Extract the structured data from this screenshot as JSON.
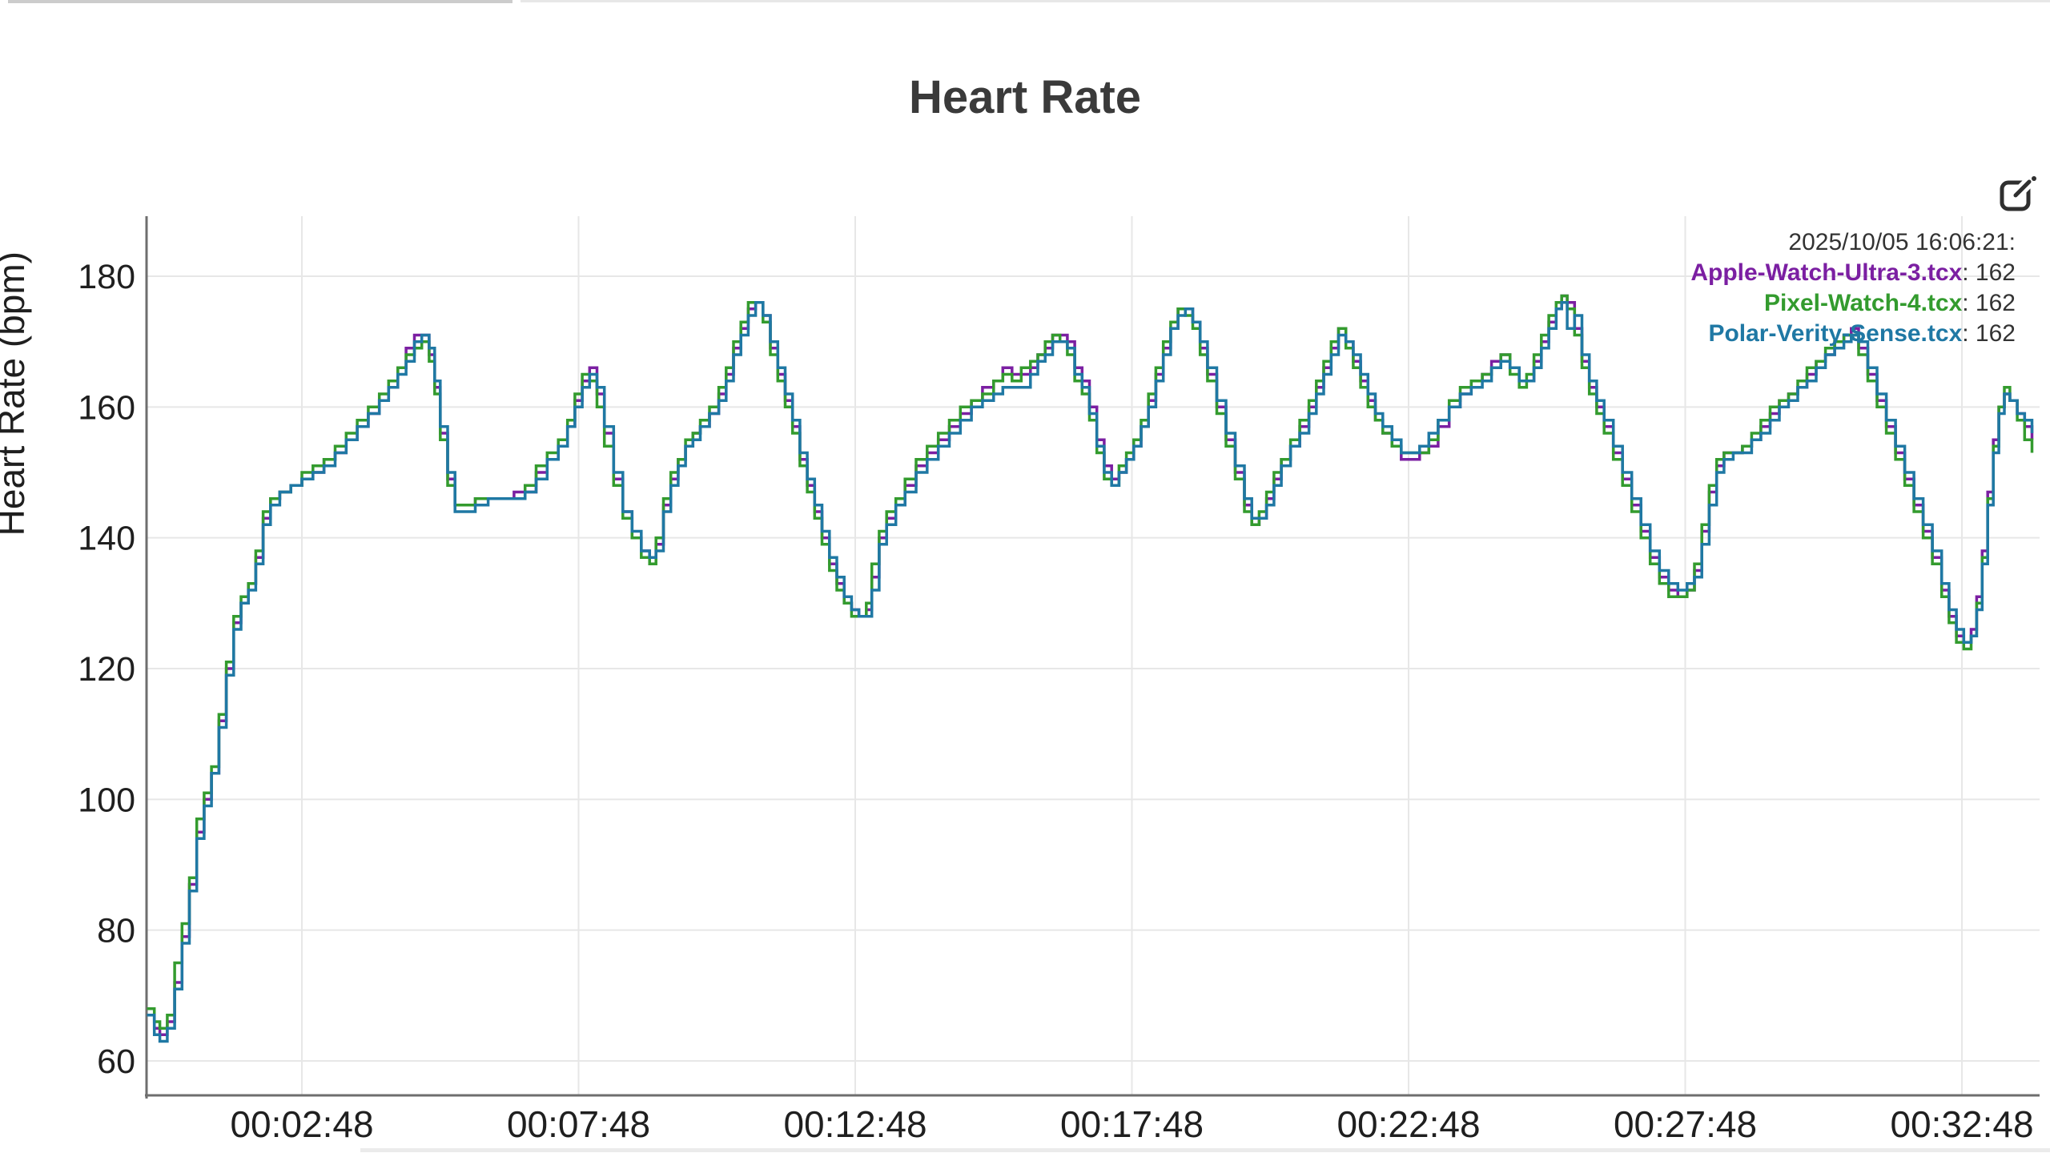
{
  "page": {
    "title": "Heart Rate"
  },
  "artifacts": {
    "top_edge_color_dark": "#cccccc",
    "top_edge_color_light": "#e7e7e7",
    "bottom_edge_color": "#ebebeb"
  },
  "chart_data": {
    "type": "line",
    "title": "Heart Rate",
    "xlabel": "",
    "ylabel": "Heart Rate (bpm)",
    "grid": true,
    "grid_color": "#e7e7e7",
    "axis_color": "#6e6e6e",
    "tick_text_color": "#1f1f1f",
    "ylim": [
      52,
      189
    ],
    "xlim_seconds": [
      0,
      2049
    ],
    "y_ticks": [
      60,
      80,
      100,
      120,
      140,
      160,
      180
    ],
    "x_ticks": [
      {
        "label": "00:02:48",
        "t": 168
      },
      {
        "label": "00:07:48",
        "t": 468
      },
      {
        "label": "00:12:48",
        "t": 768
      },
      {
        "label": "00:17:48",
        "t": 1068
      },
      {
        "label": "00:22:48",
        "t": 1368
      },
      {
        "label": "00:27:48",
        "t": 1668
      },
      {
        "label": "00:32:48",
        "t": 1968
      }
    ],
    "legend_position": "top-right-inside",
    "hover": {
      "timestamp": "2025/10/05 16:06:21:",
      "values": [
        {
          "name": "Apple-Watch-Ultra-3.tcx",
          "suffix": ": 162",
          "value": 162,
          "color": "#7b1fa2"
        },
        {
          "name": "Pixel-Watch-4.tcx",
          "suffix": ": 162",
          "value": 162,
          "color": "#339b2e"
        },
        {
          "name": "Polar-Verity-Sense.tcx",
          "suffix": ": 162",
          "value": 162,
          "color": "#1f78a4"
        }
      ]
    },
    "t": [
      0,
      8,
      14,
      22,
      30,
      38,
      46,
      54,
      62,
      70,
      78,
      86,
      94,
      102,
      110,
      118,
      126,
      134,
      144,
      156,
      168,
      180,
      192,
      204,
      216,
      228,
      240,
      252,
      262,
      272,
      281,
      290,
      298,
      306,
      312,
      318,
      326,
      334,
      344,
      356,
      370,
      384,
      398,
      410,
      422,
      434,
      446,
      456,
      464,
      472,
      480,
      488,
      496,
      506,
      516,
      526,
      536,
      545,
      552,
      560,
      568,
      576,
      584,
      592,
      600,
      610,
      620,
      628,
      636,
      644,
      652,
      660,
      668,
      676,
      684,
      692,
      700,
      708,
      716,
      724,
      732,
      740,
      748,
      756,
      764,
      772,
      780,
      786,
      794,
      802,
      812,
      822,
      834,
      846,
      858,
      870,
      882,
      894,
      906,
      918,
      928,
      938,
      948,
      958,
      966,
      974,
      982,
      990,
      998,
      1006,
      1014,
      1022,
      1030,
      1038,
      1046,
      1054,
      1062,
      1070,
      1078,
      1086,
      1094,
      1102,
      1110,
      1118,
      1126,
      1134,
      1142,
      1150,
      1160,
      1170,
      1180,
      1190,
      1198,
      1206,
      1214,
      1222,
      1230,
      1240,
      1250,
      1260,
      1268,
      1276,
      1284,
      1292,
      1300,
      1308,
      1316,
      1324,
      1332,
      1340,
      1350,
      1360,
      1370,
      1380,
      1390,
      1400,
      1412,
      1424,
      1436,
      1448,
      1458,
      1468,
      1478,
      1488,
      1496,
      1504,
      1512,
      1520,
      1528,
      1534,
      1540,
      1548,
      1556,
      1564,
      1572,
      1580,
      1590,
      1600,
      1610,
      1620,
      1630,
      1640,
      1650,
      1660,
      1670,
      1678,
      1686,
      1694,
      1702,
      1710,
      1720,
      1730,
      1740,
      1750,
      1760,
      1770,
      1780,
      1790,
      1800,
      1810,
      1820,
      1830,
      1840,
      1848,
      1856,
      1866,
      1876,
      1886,
      1896,
      1906,
      1916,
      1926,
      1936,
      1946,
      1954,
      1962,
      1970,
      1978,
      1984,
      1990,
      1996,
      2002,
      2008,
      2014,
      2020,
      2028,
      2036,
      2044
    ],
    "series": [
      {
        "name": "Apple-Watch-Ultra-3.tcx",
        "color": "#7b1fa2",
        "values": [
          67,
          65,
          64,
          66,
          72,
          79,
          87,
          95,
          100,
          104,
          112,
          120,
          127,
          130,
          133,
          137,
          143,
          146,
          147,
          148,
          149,
          150,
          152,
          153,
          155,
          157,
          159,
          161,
          163,
          166,
          169,
          171,
          171,
          168,
          163,
          156,
          149,
          145,
          145,
          146,
          146,
          146,
          147,
          147,
          150,
          152,
          154,
          157,
          161,
          164,
          166,
          162,
          156,
          149,
          144,
          140,
          138,
          137,
          139,
          145,
          149,
          152,
          154,
          156,
          157,
          159,
          162,
          165,
          169,
          172,
          175,
          176,
          174,
          169,
          165,
          161,
          157,
          152,
          148,
          144,
          140,
          136,
          133,
          130,
          129,
          128,
          129,
          134,
          140,
          143,
          145,
          148,
          151,
          153,
          155,
          157,
          159,
          161,
          163,
          164,
          166,
          165,
          165,
          166,
          168,
          169,
          171,
          171,
          170,
          166,
          164,
          160,
          155,
          151,
          149,
          150,
          152,
          154,
          157,
          161,
          165,
          169,
          172,
          175,
          175,
          173,
          169,
          165,
          160,
          155,
          150,
          145,
          142,
          143,
          146,
          149,
          152,
          154,
          157,
          160,
          163,
          166,
          169,
          172,
          170,
          167,
          164,
          161,
          158,
          156,
          154,
          152,
          152,
          153,
          154,
          157,
          160,
          162,
          164,
          165,
          167,
          168,
          166,
          164,
          164,
          167,
          170,
          173,
          175,
          177,
          176,
          172,
          167,
          163,
          160,
          157,
          153,
          149,
          145,
          141,
          137,
          134,
          132,
          131,
          132,
          135,
          141,
          147,
          151,
          153,
          153,
          154,
          155,
          157,
          159,
          161,
          162,
          163,
          165,
          167,
          168,
          170,
          171,
          172,
          169,
          165,
          161,
          157,
          153,
          149,
          145,
          141,
          137,
          132,
          128,
          125,
          124,
          126,
          131,
          138,
          147,
          155,
          160,
          162,
          161,
          159,
          157,
          155
        ]
      },
      {
        "name": "Pixel-Watch-4.tcx",
        "color": "#339b2e",
        "values": [
          68,
          66,
          65,
          67,
          75,
          81,
          88,
          97,
          101,
          105,
          113,
          121,
          128,
          131,
          133,
          138,
          144,
          146,
          147,
          148,
          150,
          151,
          152,
          154,
          156,
          158,
          160,
          162,
          164,
          166,
          168,
          169,
          170,
          167,
          162,
          155,
          148,
          145,
          145,
          146,
          146,
          146,
          146,
          148,
          151,
          153,
          155,
          158,
          162,
          165,
          164,
          160,
          154,
          148,
          143,
          140,
          137,
          136,
          140,
          146,
          150,
          152,
          155,
          156,
          158,
          160,
          163,
          166,
          170,
          173,
          176,
          176,
          173,
          168,
          164,
          160,
          156,
          151,
          147,
          143,
          139,
          135,
          132,
          130,
          128,
          128,
          130,
          136,
          141,
          144,
          146,
          149,
          152,
          154,
          156,
          158,
          160,
          161,
          162,
          164,
          165,
          164,
          166,
          167,
          168,
          170,
          171,
          170,
          168,
          164,
          162,
          158,
          153,
          149,
          148,
          151,
          153,
          155,
          158,
          162,
          166,
          170,
          173,
          175,
          174,
          172,
          168,
          164,
          159,
          154,
          149,
          144,
          142,
          144,
          147,
          150,
          152,
          155,
          158,
          161,
          164,
          167,
          170,
          172,
          169,
          166,
          163,
          160,
          158,
          156,
          154,
          153,
          153,
          153,
          155,
          158,
          161,
          163,
          164,
          165,
          166,
          168,
          165,
          163,
          165,
          168,
          171,
          174,
          176,
          177,
          175,
          171,
          166,
          162,
          159,
          156,
          152,
          148,
          144,
          140,
          136,
          133,
          131,
          131,
          132,
          136,
          142,
          148,
          152,
          153,
          153,
          154,
          156,
          158,
          160,
          161,
          162,
          164,
          166,
          167,
          169,
          170,
          171,
          171,
          168,
          164,
          160,
          156,
          152,
          148,
          144,
          140,
          136,
          131,
          127,
          124,
          123,
          125,
          130,
          137,
          146,
          154,
          160,
          163,
          161,
          158,
          155,
          153
        ]
      },
      {
        "name": "Polar-Verity-Sense.tcx",
        "color": "#1f78a4",
        "values": [
          67,
          64,
          63,
          65,
          71,
          78,
          86,
          94,
          99,
          104,
          111,
          119,
          126,
          130,
          132,
          136,
          142,
          145,
          147,
          148,
          149,
          150,
          151,
          153,
          155,
          157,
          159,
          161,
          163,
          165,
          167,
          170,
          171,
          169,
          164,
          157,
          150,
          144,
          144,
          145,
          146,
          146,
          146,
          147,
          149,
          152,
          154,
          157,
          160,
          163,
          165,
          163,
          157,
          150,
          144,
          141,
          138,
          137,
          138,
          144,
          148,
          151,
          154,
          155,
          157,
          159,
          161,
          164,
          168,
          171,
          174,
          176,
          174,
          170,
          166,
          162,
          158,
          153,
          149,
          145,
          141,
          137,
          134,
          131,
          129,
          128,
          128,
          132,
          139,
          142,
          145,
          147,
          150,
          152,
          154,
          156,
          158,
          160,
          161,
          162,
          163,
          163,
          163,
          165,
          167,
          168,
          170,
          170,
          169,
          165,
          163,
          159,
          154,
          150,
          148,
          150,
          152,
          154,
          157,
          160,
          164,
          168,
          172,
          174,
          175,
          173,
          170,
          166,
          161,
          156,
          151,
          146,
          143,
          143,
          145,
          148,
          151,
          154,
          156,
          159,
          162,
          165,
          168,
          171,
          170,
          168,
          165,
          162,
          159,
          157,
          155,
          153,
          153,
          154,
          156,
          158,
          160,
          162,
          163,
          164,
          166,
          167,
          166,
          164,
          164,
          166,
          169,
          172,
          175,
          176,
          172,
          174,
          168,
          164,
          161,
          158,
          154,
          150,
          146,
          142,
          138,
          135,
          133,
          132,
          133,
          134,
          139,
          145,
          150,
          152,
          153,
          153,
          155,
          156,
          158,
          160,
          161,
          163,
          164,
          166,
          168,
          169,
          170,
          171,
          170,
          166,
          162,
          158,
          154,
          150,
          146,
          142,
          138,
          133,
          129,
          126,
          124,
          125,
          129,
          136,
          145,
          153,
          159,
          162,
          161,
          159,
          158,
          156
        ]
      }
    ]
  },
  "toolbar": {
    "edit_icon": "edit-icon"
  }
}
